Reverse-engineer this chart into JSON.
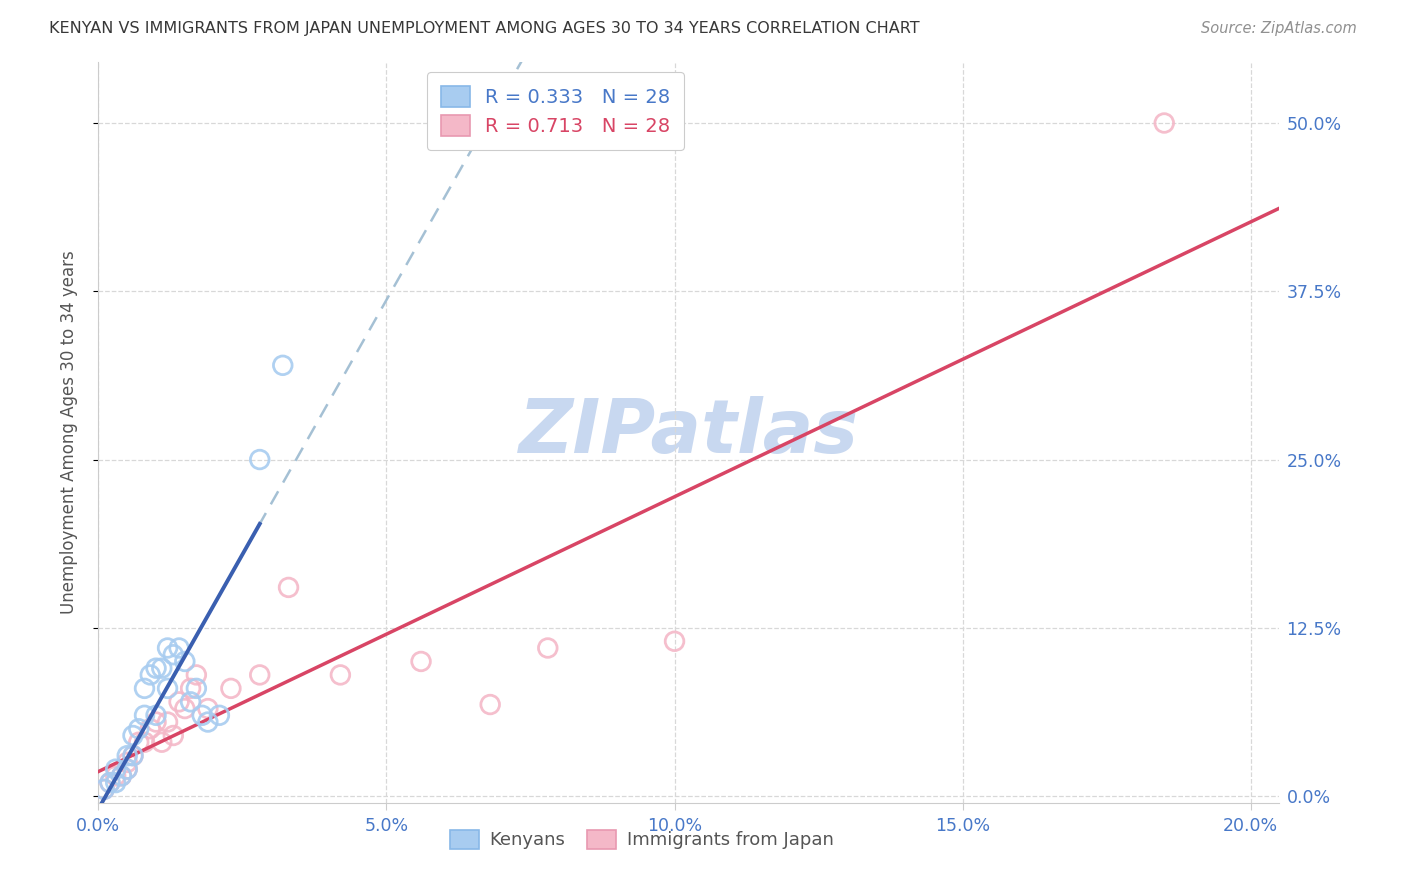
{
  "title": "KENYAN VS IMMIGRANTS FROM JAPAN UNEMPLOYMENT AMONG AGES 30 TO 34 YEARS CORRELATION CHART",
  "source": "Source: ZipAtlas.com",
  "xlabel_ticks": [
    "0.0%",
    "5.0%",
    "10.0%",
    "15.0%",
    "20.0%"
  ],
  "xlabel_tick_vals": [
    0.0,
    0.05,
    0.1,
    0.15,
    0.2
  ],
  "ylabel_ticks": [
    "0.0%",
    "12.5%",
    "25.0%",
    "37.5%",
    "50.0%"
  ],
  "ylabel_tick_vals": [
    0.0,
    0.125,
    0.25,
    0.375,
    0.5
  ],
  "ylabel_label": "Unemployment Among Ages 30 to 34 years",
  "legend_label1": "Kenyans",
  "legend_label2": "Immigrants from Japan",
  "legend_r1": "R = 0.333",
  "legend_n1": "N = 28",
  "legend_r2": "R = 0.713",
  "legend_n2": "N = 28",
  "color_blue_scatter": "#A8CCF0",
  "color_pink_scatter": "#F4B8C8",
  "color_line_blue": "#3A5FB0",
  "color_line_pink": "#D84565",
  "color_dashed": "#9BBAD0",
  "color_axis_labels": "#4878C8",
  "color_title": "#383838",
  "color_source": "#909090",
  "watermark_color": "#C8D8F0",
  "xlim": [
    0.0,
    0.205
  ],
  "ylim": [
    -0.005,
    0.545
  ],
  "blue_x": [
    0.001,
    0.002,
    0.003,
    0.003,
    0.004,
    0.005,
    0.005,
    0.006,
    0.006,
    0.007,
    0.008,
    0.008,
    0.009,
    0.01,
    0.01,
    0.011,
    0.012,
    0.012,
    0.013,
    0.014,
    0.015,
    0.016,
    0.017,
    0.018,
    0.019,
    0.021,
    0.028,
    0.032
  ],
  "blue_y": [
    0.005,
    0.01,
    0.01,
    0.02,
    0.015,
    0.02,
    0.03,
    0.03,
    0.045,
    0.05,
    0.06,
    0.08,
    0.09,
    0.06,
    0.095,
    0.095,
    0.08,
    0.11,
    0.105,
    0.11,
    0.1,
    0.07,
    0.08,
    0.06,
    0.055,
    0.06,
    0.25,
    0.32
  ],
  "pink_x": [
    0.001,
    0.002,
    0.003,
    0.004,
    0.005,
    0.005,
    0.006,
    0.007,
    0.008,
    0.009,
    0.01,
    0.011,
    0.012,
    0.013,
    0.014,
    0.015,
    0.016,
    0.017,
    0.019,
    0.023,
    0.028,
    0.033,
    0.042,
    0.056,
    0.068,
    0.078,
    0.1,
    0.185
  ],
  "pink_y": [
    0.005,
    0.01,
    0.015,
    0.015,
    0.02,
    0.025,
    0.03,
    0.04,
    0.04,
    0.05,
    0.055,
    0.04,
    0.055,
    0.045,
    0.07,
    0.065,
    0.08,
    0.09,
    0.065,
    0.08,
    0.09,
    0.155,
    0.09,
    0.1,
    0.068,
    0.11,
    0.115,
    0.5
  ],
  "blue_line_x_start": 0.0,
  "blue_line_x_end": 0.028,
  "dashed_line_x_start": 0.02,
  "dashed_line_x_end": 0.205
}
